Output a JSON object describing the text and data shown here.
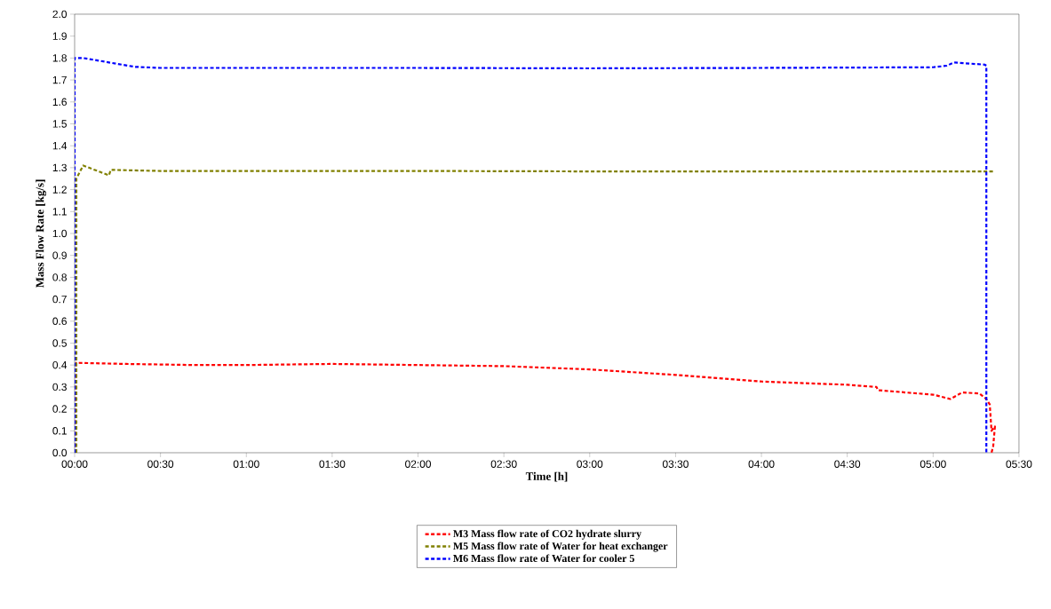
{
  "chart_data": {
    "type": "line",
    "xlabel": "Time [h]",
    "ylabel": "Mass Flow Rate [kg/s]",
    "xlim": [
      0,
      5.5
    ],
    "xticks": [
      {
        "value": 0,
        "label": "00:00"
      },
      {
        "value": 0.5,
        "label": "00:30"
      },
      {
        "value": 1,
        "label": "01:00"
      },
      {
        "value": 1.5,
        "label": "01:30"
      },
      {
        "value": 2,
        "label": "02:00"
      },
      {
        "value": 2.5,
        "label": "02:30"
      },
      {
        "value": 3,
        "label": "03:00"
      },
      {
        "value": 3.5,
        "label": "03:30"
      },
      {
        "value": 4,
        "label": "04:00"
      },
      {
        "value": 4.5,
        "label": "04:30"
      },
      {
        "value": 5,
        "label": "05:00"
      },
      {
        "value": 5.5,
        "label": "05:30"
      }
    ],
    "ylim": [
      0,
      2.0
    ],
    "yticks": [
      {
        "value": 0,
        "label": "0.0"
      },
      {
        "value": 0.1,
        "label": "0.1"
      },
      {
        "value": 0.2,
        "label": "0.2"
      },
      {
        "value": 0.3,
        "label": "0.3"
      },
      {
        "value": 0.4,
        "label": "0.4"
      },
      {
        "value": 0.5,
        "label": "0.5"
      },
      {
        "value": 0.6,
        "label": "0.6"
      },
      {
        "value": 0.7,
        "label": "0.7"
      },
      {
        "value": 0.8,
        "label": "0.8"
      },
      {
        "value": 0.9,
        "label": "0.9"
      },
      {
        "value": 1.0,
        "label": "1.0"
      },
      {
        "value": 1.1,
        "label": "1.1"
      },
      {
        "value": 1.2,
        "label": "1.2"
      },
      {
        "value": 1.3,
        "label": "1.3"
      },
      {
        "value": 1.4,
        "label": "1.4"
      },
      {
        "value": 1.5,
        "label": "1.5"
      },
      {
        "value": 1.6,
        "label": "1.6"
      },
      {
        "value": 1.7,
        "label": "1.7"
      },
      {
        "value": 1.8,
        "label": "1.8"
      },
      {
        "value": 1.9,
        "label": "1.9"
      },
      {
        "value": 2.0,
        "label": "2.0"
      }
    ],
    "grid": false,
    "legend": "bottom",
    "line_style": "dashed",
    "series": [
      {
        "name": "M3 Mass flow rate of CO2 hydrate slurry",
        "color": "#ff0000",
        "x": [
          0,
          0.01,
          0.3,
          0.7,
          1.0,
          1.5,
          2.0,
          2.5,
          3.0,
          3.5,
          4.0,
          4.5,
          4.67,
          4.68,
          5.0,
          5.1,
          5.17,
          5.27,
          5.31,
          5.33,
          5.34,
          5.36,
          5.35,
          5.34
        ],
        "values": [
          0.0,
          0.41,
          0.405,
          0.4,
          0.4,
          0.405,
          0.4,
          0.395,
          0.38,
          0.355,
          0.325,
          0.31,
          0.3,
          0.285,
          0.265,
          0.245,
          0.275,
          0.27,
          0.245,
          0.22,
          0.1,
          0.12,
          0.03,
          0.0
        ]
      },
      {
        "name": "M5 Mass flow rate of Water for heat exchanger",
        "color": "#808000",
        "x": [
          0.01,
          0.01,
          0.05,
          0.15,
          0.2,
          0.21,
          0.5,
          1.0,
          2.0,
          3.0,
          4.0,
          5.0,
          5.36
        ],
        "values": [
          0.0,
          1.25,
          1.31,
          1.28,
          1.265,
          1.29,
          1.285,
          1.285,
          1.285,
          1.283,
          1.283,
          1.283,
          1.283
        ]
      },
      {
        "name": "M6 Mass flow rate of Water for cooler 5",
        "color": "#0000ff",
        "x": [
          0,
          0,
          0.05,
          0.2,
          0.35,
          0.5,
          1.0,
          2.0,
          3.0,
          4.0,
          5.0,
          5.08,
          5.12,
          5.3,
          5.31,
          5.31
        ],
        "values": [
          0.0,
          1.8,
          1.8,
          1.78,
          1.76,
          1.755,
          1.755,
          1.755,
          1.753,
          1.755,
          1.758,
          1.765,
          1.78,
          1.77,
          1.765,
          0.0
        ]
      }
    ]
  }
}
